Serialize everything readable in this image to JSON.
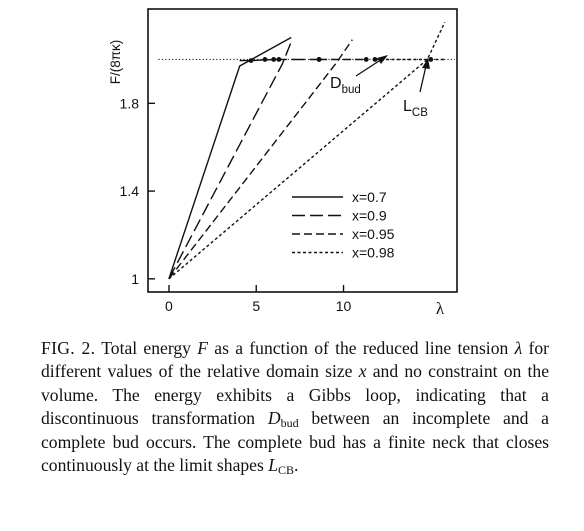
{
  "chart_data": {
    "type": "line",
    "title": "",
    "xlabel": "λ",
    "ylabel": "F/(8πκ)",
    "xlim": [
      -1.2,
      16.5
    ],
    "ylim": [
      0.94,
      2.23
    ],
    "xticks": [
      {
        "value": 0,
        "label": "0"
      },
      {
        "value": 5,
        "label": "5"
      },
      {
        "value": 10,
        "label": "10"
      }
    ],
    "yticks": [
      {
        "value": 1.0,
        "label": "1"
      },
      {
        "value": 1.4,
        "label": "1.4"
      },
      {
        "value": 1.8,
        "label": "1.8"
      }
    ],
    "reference_line": {
      "y": 2.0,
      "style": "dotted"
    },
    "grid": false,
    "legend_position": "bottom-right",
    "series": [
      {
        "name": "x=0.7",
        "dash": "solid",
        "rising": [
          [
            0,
            1.0
          ],
          [
            4.05,
            1.97
          ],
          [
            7.0,
            2.1
          ]
        ],
        "flat": [
          [
            4.05,
            1.995
          ],
          [
            4.7,
            1.995
          ],
          [
            5.4,
            1.998
          ],
          [
            6.3,
            2.0
          ]
        ],
        "dots": [
          [
            4.7,
            1.995
          ],
          [
            5.5,
            2.0
          ],
          [
            6.3,
            2.0
          ]
        ]
      },
      {
        "name": "x=0.9",
        "dash": "long-dash",
        "rising": [
          [
            0,
            1.0
          ],
          [
            6.5,
            1.98
          ],
          [
            7.0,
            2.08
          ]
        ],
        "flat": [
          [
            6.0,
            2.0
          ],
          [
            8.0,
            2.0
          ],
          [
            8.6,
            2.0
          ]
        ],
        "dots": [
          [
            6.0,
            2.0
          ],
          [
            8.6,
            2.0
          ]
        ]
      },
      {
        "name": "x=0.95",
        "dash": "medium-dash",
        "rising": [
          [
            0,
            1.0
          ],
          [
            9.6,
            1.985
          ],
          [
            10.5,
            2.09
          ]
        ],
        "flat": [
          [
            8.6,
            2.0
          ],
          [
            10.5,
            2.0
          ],
          [
            11.3,
            2.0
          ]
        ],
        "dots": [
          [
            8.6,
            2.0
          ],
          [
            11.3,
            2.0
          ]
        ]
      },
      {
        "name": "x=0.98",
        "dash": "short-dash",
        "rising": [
          [
            0,
            1.0
          ],
          [
            14.8,
            2.0
          ],
          [
            15.8,
            2.17
          ]
        ],
        "flat": [
          [
            11.8,
            2.0
          ],
          [
            15.0,
            2.0
          ],
          [
            15.8,
            2.0
          ]
        ],
        "dots": [
          [
            11.8,
            2.0
          ],
          [
            15.0,
            2.0
          ]
        ]
      }
    ],
    "annotations": [
      {
        "text": "D",
        "sub": "bud"
      },
      {
        "text": "L",
        "sub": "CB"
      }
    ]
  },
  "caption": {
    "lead": "FIG. 2.",
    "part1": "Total energy",
    "F": "F",
    "part2": "as a function of the reduced line tension",
    "lambda": "λ",
    "part3": "for different values of the relative domain size",
    "x": "x",
    "part4": "and no constraint on the volume.  The energy exhibits a Gibbs loop, indicating that a discontinuous transformation",
    "D": "D",
    "Dsub": "bud",
    "part5": "between an incomplete and a complete bud occurs.  The complete bud has a finite neck that closes continuously at the limit shapes",
    "L": "L",
    "Lsub": "CB",
    "part6": "."
  }
}
